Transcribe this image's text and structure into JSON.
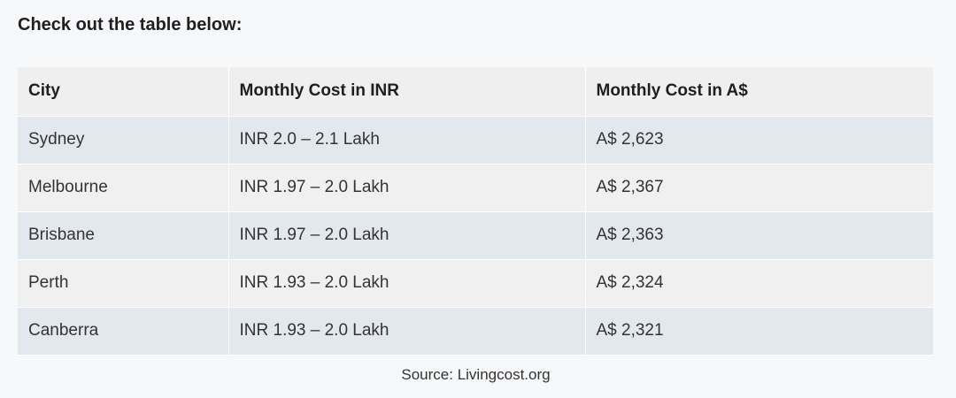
{
  "intro": "Check out the table below:",
  "table": {
    "headers": [
      "City",
      "Monthly Cost in INR",
      "Monthly Cost in A$"
    ],
    "rows": [
      [
        "Sydney",
        "INR 2.0 – 2.1 Lakh",
        "A$ 2,623"
      ],
      [
        "Melbourne",
        "INR 1.97 – 2.0 Lakh",
        "A$ 2,367"
      ],
      [
        "Brisbane",
        "INR 1.97 – 2.0 Lakh",
        "A$ 2,363"
      ],
      [
        "Perth",
        "INR 1.93 – 2.0 Lakh",
        "A$ 2,324"
      ],
      [
        "Canberra",
        "INR 1.93 – 2.0 Lakh",
        "A$ 2,321"
      ]
    ]
  },
  "source": "Source: Livingcost.org"
}
